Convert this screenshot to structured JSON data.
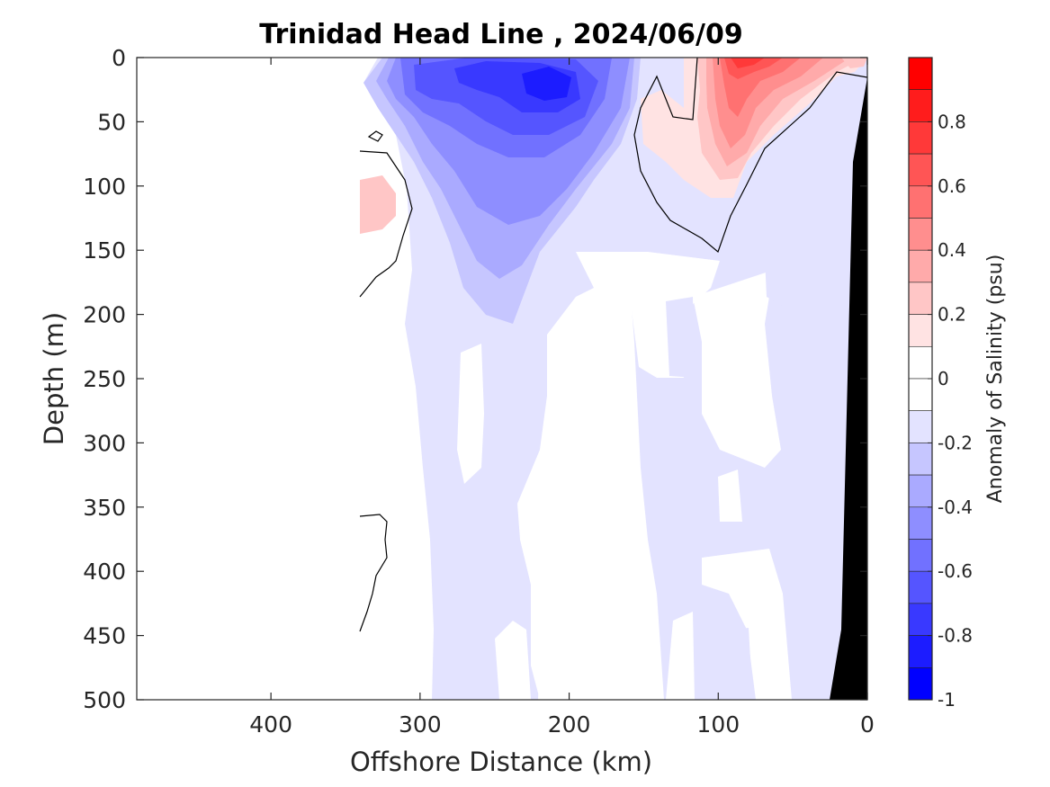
{
  "chart_data": {
    "type": "contour",
    "title": "Trinidad Head Line , 2024/06/09",
    "xlabel": "Offshore Distance (km)",
    "ylabel": "Depth (m)",
    "colorbar_label": "Anomaly of Salinity (psu)",
    "xlim": [
      490,
      0
    ],
    "ylim": [
      0,
      500
    ],
    "y_reversed": true,
    "x_reversed": true,
    "x_ticks": [
      400,
      300,
      200,
      100,
      0
    ],
    "y_ticks": [
      0,
      50,
      100,
      150,
      200,
      250,
      300,
      350,
      400,
      450,
      500
    ],
    "colorbar_ticks": [
      0.8,
      0.6,
      0.4,
      0.2,
      0,
      -0.2,
      -0.4,
      -0.6,
      -0.8,
      -1
    ],
    "colorbar_range": [
      -1,
      1
    ],
    "colorbar_levels": [
      {
        "lo": 0.9,
        "hi": 1.0,
        "color": "#ff0000"
      },
      {
        "lo": 0.8,
        "hi": 0.9,
        "color": "#ff1c1c"
      },
      {
        "lo": 0.7,
        "hi": 0.8,
        "color": "#ff3939"
      },
      {
        "lo": 0.6,
        "hi": 0.7,
        "color": "#ff5555"
      },
      {
        "lo": 0.5,
        "hi": 0.6,
        "color": "#ff7171"
      },
      {
        "lo": 0.4,
        "hi": 0.5,
        "color": "#ff8e8e"
      },
      {
        "lo": 0.3,
        "hi": 0.4,
        "color": "#ffaaaa"
      },
      {
        "lo": 0.2,
        "hi": 0.3,
        "color": "#ffc6c6"
      },
      {
        "lo": 0.1,
        "hi": 0.2,
        "color": "#ffe3e3"
      },
      {
        "lo": 0.0,
        "hi": 0.1,
        "color": "#ffffff"
      },
      {
        "lo": -0.1,
        "hi": 0.0,
        "color": "#ffffff"
      },
      {
        "lo": -0.2,
        "hi": -0.1,
        "color": "#e3e3ff"
      },
      {
        "lo": -0.3,
        "hi": -0.2,
        "color": "#c6c6ff"
      },
      {
        "lo": -0.4,
        "hi": -0.3,
        "color": "#aaaaff"
      },
      {
        "lo": -0.5,
        "hi": -0.4,
        "color": "#8e8eff"
      },
      {
        "lo": -0.6,
        "hi": -0.5,
        "color": "#7171ff"
      },
      {
        "lo": -0.7,
        "hi": -0.6,
        "color": "#5555ff"
      },
      {
        "lo": -0.8,
        "hi": -0.7,
        "color": "#3939ff"
      },
      {
        "lo": -0.9,
        "hi": -0.8,
        "color": "#1c1cff"
      },
      {
        "lo": -1.0,
        "hi": -0.9,
        "color": "#0000ff"
      }
    ],
    "data_extent_km": [
      0,
      340
    ],
    "bathymetry_fill_color": "#000000",
    "zero_contour_color": "#000000"
  }
}
